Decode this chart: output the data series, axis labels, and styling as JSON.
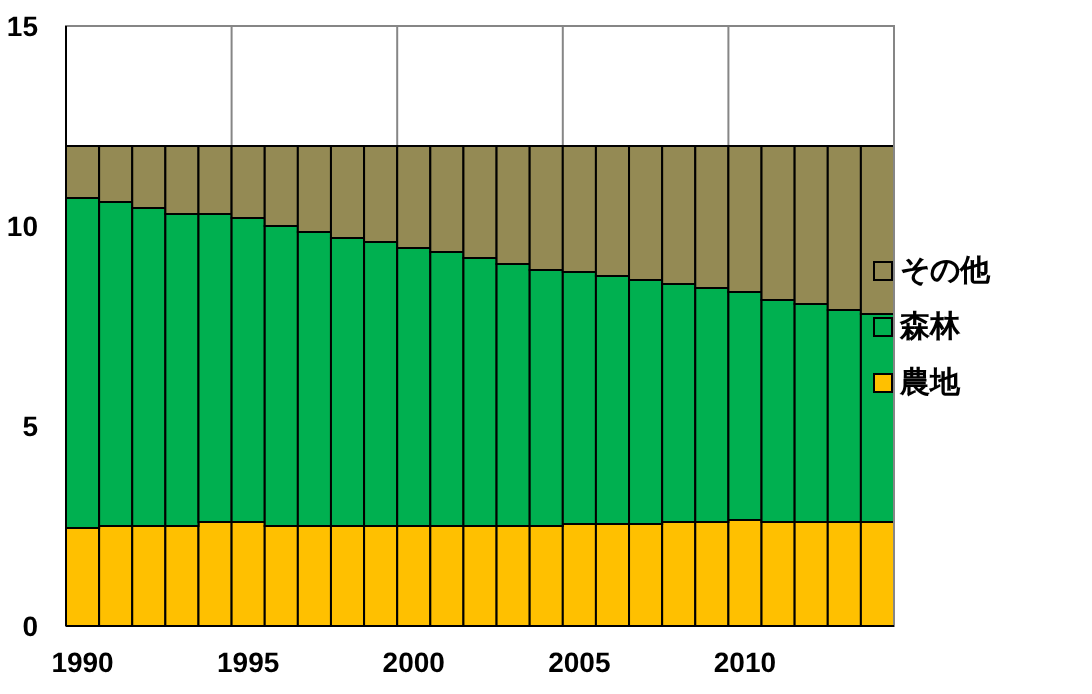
{
  "chart_data": {
    "type": "bar",
    "stacked": true,
    "categories": [
      "1990",
      null,
      null,
      null,
      null,
      "1995",
      null,
      null,
      null,
      null,
      "2000",
      null,
      null,
      null,
      null,
      "2005",
      null,
      null,
      null,
      null,
      "2010",
      null,
      null,
      null,
      null
    ],
    "series": [
      {
        "name": "農地",
        "color": "#ffc000",
        "values": [
          2.45,
          2.5,
          2.5,
          2.5,
          2.6,
          2.6,
          2.5,
          2.5,
          2.5,
          2.5,
          2.5,
          2.5,
          2.5,
          2.5,
          2.5,
          2.55,
          2.55,
          2.55,
          2.6,
          2.6,
          2.65,
          2.6,
          2.6,
          2.6,
          2.6
        ]
      },
      {
        "name": "森林",
        "color": "#00b050",
        "values": [
          8.25,
          8.1,
          7.95,
          7.8,
          7.7,
          7.6,
          7.5,
          7.35,
          7.2,
          7.1,
          6.95,
          6.85,
          6.7,
          6.55,
          6.4,
          6.3,
          6.2,
          6.1,
          5.95,
          5.85,
          5.7,
          5.55,
          5.45,
          5.3,
          5.2
        ]
      },
      {
        "name": "その他",
        "color": "#948a54",
        "values": [
          1.3,
          1.4,
          1.55,
          1.7,
          1.7,
          1.8,
          2.0,
          2.15,
          2.3,
          2.4,
          2.55,
          2.65,
          2.8,
          2.95,
          3.1,
          3.15,
          3.25,
          3.35,
          3.45,
          3.55,
          3.65,
          3.85,
          3.95,
          4.1,
          4.2
        ]
      }
    ],
    "ylim": [
      0,
      15
    ],
    "yticks": [
      0,
      5,
      10,
      15
    ],
    "grid": "x",
    "legend": "right"
  }
}
